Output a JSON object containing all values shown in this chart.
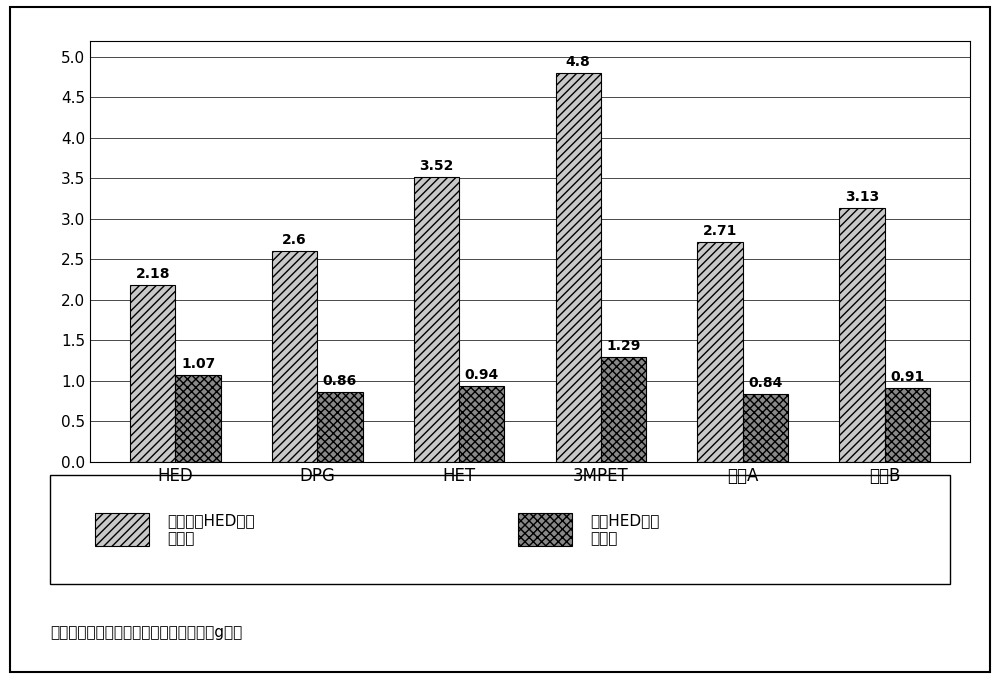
{
  "categories": [
    "HED",
    "DPG",
    "HET",
    "3MPET",
    "溶液A",
    "溶液B"
  ],
  "values_no_hed": [
    2.18,
    2.6,
    3.52,
    4.8,
    2.71,
    3.13
  ],
  "values_with_hed": [
    1.07,
    0.86,
    0.94,
    1.29,
    0.84,
    0.91
  ],
  "ylim": [
    0,
    5.2
  ],
  "yticks": [
    0,
    0.5,
    1,
    1.5,
    2,
    2.5,
    3,
    3.5,
    4,
    4.5,
    5
  ],
  "legend_label_1": "没有添加HED时的\n必要量",
  "legend_label_2": "添加HED时的\n必要量",
  "footnote": "＊图表中，纵轴表示各醒溶剂的添加量（g）。",
  "bar_width": 0.32,
  "hatch_no_hed": "////",
  "hatch_with_hed": "xxxx",
  "color_no_hed": "#c8c8c8",
  "color_with_hed": "#888888",
  "edge_color": "#000000",
  "background_color": "#ffffff",
  "label_fontsize": 12,
  "tick_fontsize": 11,
  "annotation_fontsize": 10,
  "legend_fontsize": 11,
  "footnote_fontsize": 11
}
